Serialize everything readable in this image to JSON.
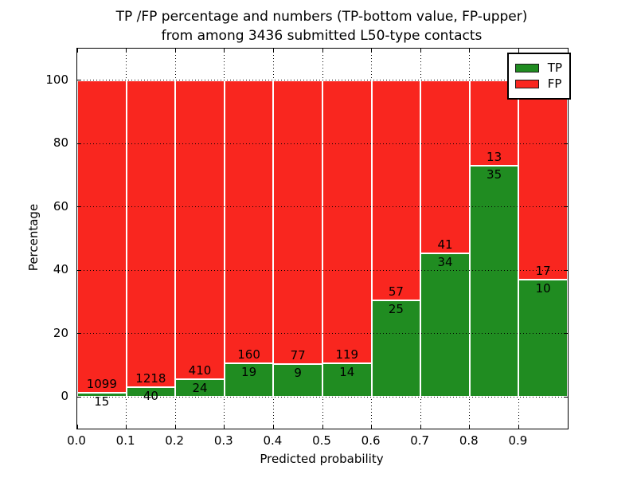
{
  "figure": {
    "title_line1": "TP /FP percentage and numbers (TP-bottom value, FP-upper)",
    "title_line2": "from among 3436 submitted L50-type contacts"
  },
  "chart_data": {
    "type": "bar",
    "stacked": true,
    "normalized": "each bar stacks to 100%",
    "title": "TP /FP percentage and numbers (TP-bottom value, FP-upper)\nfrom among 3436 submitted L50-type contacts",
    "xlabel": "Predicted probability",
    "ylabel": "Percentage",
    "total_contacts": 3436,
    "bin_starts": [
      0.0,
      0.1,
      0.2,
      0.3,
      0.4,
      0.5,
      0.6,
      0.7,
      0.8,
      0.9
    ],
    "bin_width": 0.1,
    "x_tick_labels": [
      "0.0",
      "0.1",
      "0.2",
      "0.3",
      "0.4",
      "0.5",
      "0.6",
      "0.7",
      "0.8",
      "0.9"
    ],
    "y_ticks": [
      0,
      20,
      40,
      60,
      80,
      100
    ],
    "xlim": [
      0,
      1
    ],
    "ylim": [
      -10,
      110
    ],
    "grid": "dotted",
    "legend_position": "upper right",
    "series": [
      {
        "name": "TP",
        "color": "#208c21",
        "values": [
          15,
          40,
          24,
          19,
          9,
          14,
          25,
          34,
          35,
          10
        ]
      },
      {
        "name": "FP",
        "color": "#f9261f",
        "values": [
          1099,
          1218,
          410,
          160,
          77,
          119,
          57,
          41,
          13,
          17
        ]
      }
    ],
    "tp_percent": [
      1.35,
      3.18,
      5.53,
      10.61,
      10.47,
      10.53,
      30.49,
      45.33,
      72.92,
      37.04
    ]
  },
  "colors": {
    "tp": "#208c21",
    "fp": "#f9261f",
    "frame": "#000000",
    "background": "#ffffff",
    "text": "#000000"
  }
}
